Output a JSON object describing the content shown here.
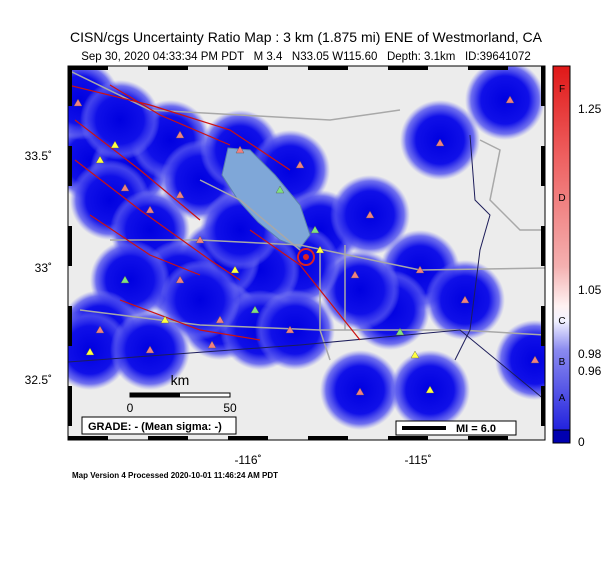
{
  "map": {
    "title": "CISN/cgs Uncertainty Ratio Map : 3 km (1.875 mi) ENE of Westmorland, CA",
    "subtitle": "Sep 30, 2020 04:33:34 PM PDT   M 3.4   N33.05 W115.60   Depth: 3.1km   ID:39641072",
    "lat_labels": [
      "33.5˚",
      "33˚",
      "32.5˚"
    ],
    "lon_labels": [
      "-116˚",
      "-115˚"
    ],
    "scale_bar": {
      "unit": "km",
      "ticks": [
        "0",
        "50"
      ]
    },
    "grade": "GRADE: - (Mean sigma: -)",
    "mi_label": "MI = 6.0",
    "colorbar": {
      "grades": [
        "F",
        "D",
        "C",
        "B",
        "A"
      ],
      "values": [
        "1.25",
        "1.05",
        "0.98",
        "0.96",
        "0"
      ]
    },
    "footer": "Map Version 4 Processed 2020-10-01 11:46:24 AM PDT"
  }
}
